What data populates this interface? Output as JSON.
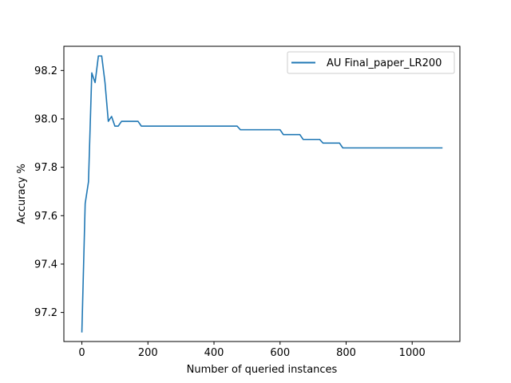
{
  "chart_data": {
    "type": "line",
    "title": "",
    "xlabel": "Number of queried instances",
    "ylabel": "Accuracy %",
    "xlim": [
      -54.5,
      1144.5
    ],
    "ylim": [
      97.08,
      98.3
    ],
    "xticks": [
      0,
      200,
      400,
      600,
      800,
      1000
    ],
    "yticks": [
      97.2,
      97.4,
      97.6,
      97.8,
      98.0,
      98.2
    ],
    "xtick_labels": [
      "0",
      "200",
      "400",
      "600",
      "800",
      "1000"
    ],
    "ytick_labels": [
      "97.2",
      "97.4",
      "97.6",
      "97.8",
      "98.0",
      "98.2"
    ],
    "grid": false,
    "legend_position": "top-right",
    "series": [
      {
        "name": "AU Final_paper_LR200",
        "color": "#1f77b4",
        "x": [
          0,
          10,
          20,
          30,
          40,
          50,
          60,
          70,
          80,
          90,
          100,
          110,
          120,
          130,
          140,
          150,
          160,
          170,
          180,
          190,
          200,
          300,
          400,
          460,
          470,
          480,
          500,
          600,
          610,
          620,
          650,
          660,
          670,
          700,
          720,
          730,
          750,
          780,
          790,
          800,
          900,
          1000,
          1090
        ],
        "y": [
          97.12,
          97.65,
          97.74,
          98.19,
          98.15,
          98.26,
          98.26,
          98.15,
          97.99,
          98.01,
          97.97,
          97.97,
          97.99,
          97.99,
          97.99,
          97.99,
          97.99,
          97.99,
          97.97,
          97.97,
          97.97,
          97.97,
          97.97,
          97.97,
          97.97,
          97.955,
          97.955,
          97.955,
          97.935,
          97.935,
          97.935,
          97.935,
          97.915,
          97.915,
          97.915,
          97.9,
          97.9,
          97.9,
          97.88,
          97.88,
          97.88,
          97.88,
          97.88
        ]
      }
    ]
  }
}
